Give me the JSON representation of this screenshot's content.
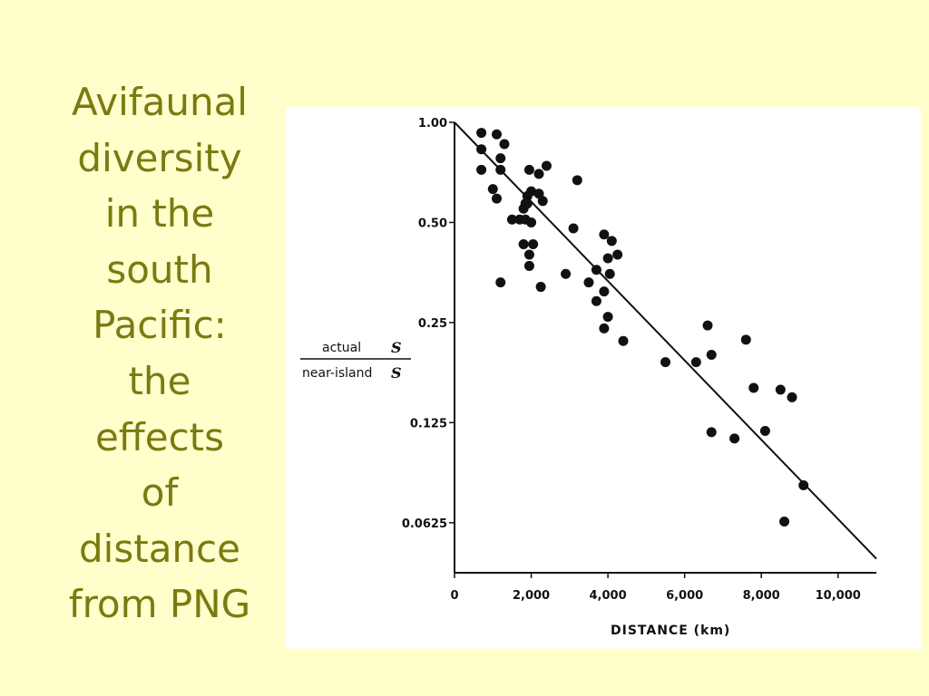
{
  "slide": {
    "title_lines": [
      "Avifaunal",
      "diversity",
      "in the",
      "south",
      "Pacific:",
      "the",
      "effects",
      "of",
      "distance",
      "from PNG"
    ],
    "background_color": "#ffffcc",
    "title_color": "#7a7a10"
  },
  "chart_data": {
    "type": "scatter",
    "xlabel": "DISTANCE  (km)",
    "ylabel_numerator": "actual",
    "ylabel_numerator_var": "S",
    "ylabel_denominator": "near-island",
    "ylabel_denominator_var": "S",
    "y_scale": "log2",
    "xlim": [
      0,
      11000
    ],
    "ylim": [
      0.0442,
      1.0
    ],
    "x_ticks": [
      0,
      2000,
      4000,
      6000,
      8000,
      10000
    ],
    "x_tick_labels": [
      "0",
      "2,000",
      "4,000",
      "6,000",
      "8,000",
      "10,000"
    ],
    "y_ticks": [
      1.0,
      0.5,
      0.25,
      0.125,
      0.0625
    ],
    "y_tick_labels": [
      "1.00",
      "0.50",
      "0.25",
      "0.125",
      "0.0625"
    ],
    "grid": false,
    "points": [
      {
        "x": 700,
        "y": 0.93
      },
      {
        "x": 700,
        "y": 0.83
      },
      {
        "x": 700,
        "y": 0.72
      },
      {
        "x": 1000,
        "y": 0.63
      },
      {
        "x": 1100,
        "y": 0.59
      },
      {
        "x": 1100,
        "y": 0.92
      },
      {
        "x": 1200,
        "y": 0.78
      },
      {
        "x": 1200,
        "y": 0.72
      },
      {
        "x": 1300,
        "y": 0.86
      },
      {
        "x": 1200,
        "y": 0.33
      },
      {
        "x": 1500,
        "y": 0.51
      },
      {
        "x": 1700,
        "y": 0.51
      },
      {
        "x": 1800,
        "y": 0.55
      },
      {
        "x": 1800,
        "y": 0.43
      },
      {
        "x": 1850,
        "y": 0.57
      },
      {
        "x": 1850,
        "y": 0.51
      },
      {
        "x": 1900,
        "y": 0.6
      },
      {
        "x": 1900,
        "y": 0.57
      },
      {
        "x": 1950,
        "y": 0.72
      },
      {
        "x": 1950,
        "y": 0.37
      },
      {
        "x": 1950,
        "y": 0.4
      },
      {
        "x": 2000,
        "y": 0.62
      },
      {
        "x": 2000,
        "y": 0.5
      },
      {
        "x": 2050,
        "y": 0.43
      },
      {
        "x": 2200,
        "y": 0.7
      },
      {
        "x": 2200,
        "y": 0.61
      },
      {
        "x": 2250,
        "y": 0.32
      },
      {
        "x": 2300,
        "y": 0.58
      },
      {
        "x": 2400,
        "y": 0.74
      },
      {
        "x": 2900,
        "y": 0.35
      },
      {
        "x": 3100,
        "y": 0.48
      },
      {
        "x": 3200,
        "y": 0.67
      },
      {
        "x": 3500,
        "y": 0.33
      },
      {
        "x": 3700,
        "y": 0.36
      },
      {
        "x": 3700,
        "y": 0.29
      },
      {
        "x": 3900,
        "y": 0.46
      },
      {
        "x": 3900,
        "y": 0.31
      },
      {
        "x": 3900,
        "y": 0.24
      },
      {
        "x": 4000,
        "y": 0.39
      },
      {
        "x": 4000,
        "y": 0.26
      },
      {
        "x": 4050,
        "y": 0.35
      },
      {
        "x": 4100,
        "y": 0.44
      },
      {
        "x": 4250,
        "y": 0.4
      },
      {
        "x": 4400,
        "y": 0.22
      },
      {
        "x": 5500,
        "y": 0.19
      },
      {
        "x": 6300,
        "y": 0.19
      },
      {
        "x": 6600,
        "y": 0.245
      },
      {
        "x": 6700,
        "y": 0.2
      },
      {
        "x": 6700,
        "y": 0.117
      },
      {
        "x": 7300,
        "y": 0.112
      },
      {
        "x": 7600,
        "y": 0.222
      },
      {
        "x": 7800,
        "y": 0.159
      },
      {
        "x": 8100,
        "y": 0.118
      },
      {
        "x": 8500,
        "y": 0.157
      },
      {
        "x": 8800,
        "y": 0.149
      },
      {
        "x": 9100,
        "y": 0.081
      },
      {
        "x": 8600,
        "y": 0.063
      }
    ],
    "trend_line": [
      {
        "x": 0,
        "y": 1.0
      },
      {
        "x": 11000,
        "y": 0.0487
      }
    ]
  }
}
